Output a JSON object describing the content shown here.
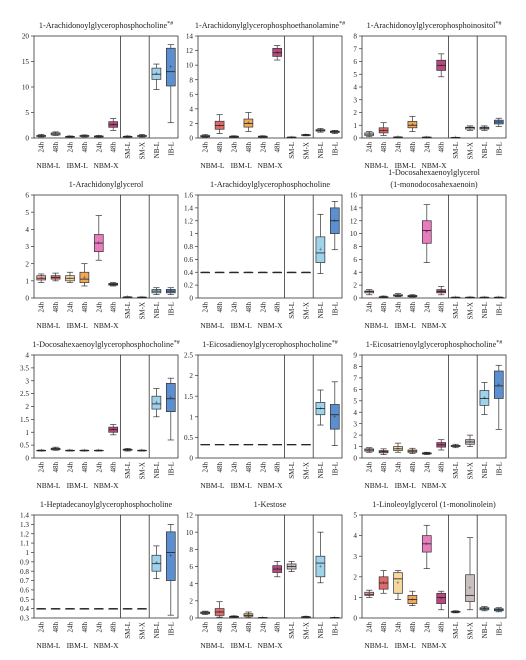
{
  "figure": {
    "x_labels": [
      "24h",
      "48h",
      "24h",
      "48h",
      "24h",
      "48h",
      "SM-L",
      "SM-X",
      "NB-L",
      "IB-L"
    ],
    "group_labels": [
      "NBM-L",
      "IBM-L",
      "NBM-X"
    ],
    "box_colors": [
      "#f4f4f4",
      "#f4f4f4",
      "#f4f4f4",
      "#f4f4f4",
      "#f4f4f4",
      "#f4f4f4",
      "#f4f4f4",
      "#f4f4f4",
      "#9fd3ec",
      "#5b8fcf"
    ],
    "color_sets": {
      "c1": [
        "#f4f4f4",
        "#f4f4f4",
        "#f4f4f4",
        "#f4f4f4",
        "#f4f4f4",
        "#b9487f",
        "#f4f4f4",
        "#f4f4f4",
        "#9fd3ec",
        "#5b8fcf"
      ],
      "c2": [
        "#f4f4f4",
        "#e06a6a",
        "#f4f4f4",
        "#f0a95a",
        "#f4f4f4",
        "#b9487f",
        "#f4f4f4",
        "#f4f4f4",
        "#9fd3ec",
        "#5b8fcf"
      ],
      "c3": [
        "#f4a6a6",
        "#e06a6a",
        "#f6d7a0",
        "#f0a95a",
        "#e97bbf",
        "#9c3c7a",
        "#f4f4f4",
        "#f4f4f4",
        "#9fd3ec",
        "#5b8fcf"
      ],
      "c4": [
        "#f4f4f4",
        "#f4f4f4",
        "#f4f4f4",
        "#f4f4f4",
        "#f4f4f4",
        "#f4f4f4",
        "#f4f4f4",
        "#f4f4f4",
        "#9fd3ec",
        "#5b8fcf"
      ],
      "c5": [
        "#f4a6a6",
        "#e06a6a",
        "#f6d7a0",
        "#f0a95a",
        "#e97bbf",
        "#b9487f",
        "#c9bfbf",
        "#c9bfbf",
        "#9fd3ec",
        "#5b8fcf"
      ]
    }
  },
  "chart_data": [
    {
      "type": "box",
      "title": "1-Arachidonoylglycerophosphocholine",
      "title_sup": "*#",
      "ylim": [
        0,
        20
      ],
      "yticks": [
        0,
        5,
        10,
        15,
        20
      ],
      "colors": "c1",
      "boxes": [
        [
          0.2,
          0.3,
          0.4,
          0.5,
          0.7
        ],
        [
          0.5,
          0.6,
          0.8,
          1.0,
          1.2
        ],
        [
          0.1,
          0.2,
          0.3,
          0.3,
          0.4
        ],
        [
          0.2,
          0.3,
          0.4,
          0.5,
          0.6
        ],
        [
          0.1,
          0.2,
          0.3,
          0.4,
          0.5
        ],
        [
          1.5,
          2.1,
          2.6,
          3.2,
          3.8
        ],
        [
          0.1,
          0.2,
          0.3,
          0.3,
          0.4
        ],
        [
          0.2,
          0.3,
          0.4,
          0.5,
          0.7
        ],
        [
          9.5,
          11.5,
          12.5,
          13.7,
          14.5
        ],
        [
          3.0,
          10.2,
          13.0,
          17.6,
          18.3
        ]
      ]
    },
    {
      "type": "box",
      "title": "1-Arachidonylglycerophosphoethanolamine",
      "title_sup": "*#",
      "ylim": [
        0,
        14
      ],
      "yticks": [
        0,
        2,
        4,
        6,
        8,
        10,
        12,
        14
      ],
      "colors": "c2",
      "boxes": [
        [
          0.1,
          0.15,
          0.25,
          0.35,
          0.45
        ],
        [
          0.6,
          1.2,
          1.7,
          2.3,
          3.2
        ],
        [
          0.05,
          0.1,
          0.2,
          0.25,
          0.3
        ],
        [
          0.9,
          1.5,
          2.0,
          2.6,
          3.5
        ],
        [
          0.05,
          0.1,
          0.2,
          0.25,
          0.3
        ],
        [
          10.7,
          11.2,
          11.7,
          12.3,
          12.7
        ],
        [
          0.05,
          0.08,
          0.1,
          0.12,
          0.15
        ],
        [
          0.3,
          0.35,
          0.4,
          0.45,
          0.5
        ],
        [
          0.8,
          0.95,
          1.05,
          1.15,
          1.3
        ],
        [
          0.6,
          0.75,
          0.85,
          0.95,
          1.05
        ]
      ]
    },
    {
      "type": "box",
      "title": "1-Arachidonoylglycerophosphoinositol",
      "title_sup": "*#",
      "ylim": [
        0,
        8
      ],
      "yticks": [
        0,
        1,
        2,
        3,
        4,
        5,
        6,
        7,
        8
      ],
      "colors": "c2",
      "boxes": [
        [
          0.1,
          0.2,
          0.3,
          0.4,
          0.5
        ],
        [
          0.2,
          0.4,
          0.6,
          0.8,
          1.2
        ],
        [
          0.02,
          0.04,
          0.06,
          0.08,
          0.1
        ],
        [
          0.5,
          0.8,
          1.0,
          1.3,
          1.7
        ],
        [
          0.02,
          0.03,
          0.05,
          0.07,
          0.09
        ],
        [
          4.8,
          5.3,
          5.7,
          6.1,
          6.6
        ],
        [
          0.02,
          0.03,
          0.04,
          0.05,
          0.06
        ],
        [
          0.6,
          0.7,
          0.8,
          0.85,
          0.95
        ],
        [
          0.6,
          0.7,
          0.78,
          0.85,
          0.95
        ],
        [
          0.9,
          1.1,
          1.25,
          1.4,
          1.55
        ]
      ]
    },
    {
      "type": "box",
      "title": "1-Arachidonylglycerol",
      "title_sup": "",
      "ylim": [
        0,
        6
      ],
      "yticks": [
        0,
        1,
        2,
        3,
        4,
        5,
        6
      ],
      "colors": "c3",
      "boxes": [
        [
          0.9,
          1.05,
          1.15,
          1.3,
          1.4
        ],
        [
          1.0,
          1.1,
          1.2,
          1.3,
          1.45
        ],
        [
          0.9,
          1.0,
          1.15,
          1.3,
          1.5
        ],
        [
          0.7,
          0.9,
          1.1,
          1.5,
          2.0
        ],
        [
          2.2,
          2.7,
          3.2,
          3.7,
          4.8
        ],
        [
          0.7,
          0.75,
          0.8,
          0.85,
          0.9
        ],
        [
          0.02,
          0.04,
          0.05,
          0.06,
          0.08
        ],
        [
          0.02,
          0.03,
          0.04,
          0.05,
          0.06
        ],
        [
          0.2,
          0.3,
          0.4,
          0.5,
          0.6
        ],
        [
          0.2,
          0.3,
          0.4,
          0.5,
          0.6
        ]
      ]
    },
    {
      "type": "box",
      "title": "1-Arachidoylglycerophosphocholine",
      "title_sup": "",
      "ylim": [
        0,
        1.6
      ],
      "yticks": [
        0,
        0.2,
        0.4,
        0.6,
        0.8,
        1.0,
        1.2,
        1.4,
        1.6
      ],
      "colors": "c4",
      "boxes": [
        [
          0.4,
          0.4,
          0.4,
          0.4,
          0.4
        ],
        [
          0.4,
          0.4,
          0.4,
          0.4,
          0.4
        ],
        [
          0.4,
          0.4,
          0.4,
          0.4,
          0.4
        ],
        [
          0.4,
          0.4,
          0.4,
          0.4,
          0.4
        ],
        [
          0.4,
          0.4,
          0.4,
          0.4,
          0.4
        ],
        [
          0.4,
          0.4,
          0.4,
          0.4,
          0.4
        ],
        [
          0.4,
          0.4,
          0.4,
          0.4,
          0.4
        ],
        [
          0.4,
          0.4,
          0.4,
          0.4,
          0.4
        ],
        [
          0.38,
          0.55,
          0.7,
          0.95,
          1.3
        ],
        [
          0.75,
          1.0,
          1.2,
          1.4,
          1.5
        ]
      ]
    },
    {
      "type": "box",
      "title": "1-Docosahexaenoylglycerol",
      "title_line2": "(1-monodocosahexaenoin)",
      "title_sup": "",
      "ylim": [
        0,
        16
      ],
      "yticks": [
        0,
        2,
        4,
        6,
        8,
        10,
        12,
        14,
        16
      ],
      "colors": "c5",
      "boxes": [
        [
          0.5,
          0.8,
          1.0,
          1.1,
          1.3
        ],
        [
          0.05,
          0.1,
          0.15,
          0.2,
          0.3
        ],
        [
          0.2,
          0.3,
          0.4,
          0.5,
          0.7
        ],
        [
          0.15,
          0.2,
          0.3,
          0.4,
          0.5
        ],
        [
          5.5,
          8.5,
          10.5,
          12.0,
          14.5
        ],
        [
          0.5,
          0.8,
          1.0,
          1.3,
          1.8
        ],
        [
          0.05,
          0.08,
          0.1,
          0.12,
          0.15
        ],
        [
          0.05,
          0.08,
          0.1,
          0.12,
          0.15
        ],
        [
          0.05,
          0.08,
          0.1,
          0.12,
          0.15
        ],
        [
          0.05,
          0.08,
          0.1,
          0.12,
          0.15
        ]
      ]
    },
    {
      "type": "box",
      "title": "1-Docosahexaenoylglycerophosphocholine",
      "title_sup": "*#",
      "ylim": [
        0,
        4
      ],
      "yticks": [
        0,
        0.5,
        1.0,
        1.5,
        2.0,
        2.5,
        3.0,
        3.5,
        4.0
      ],
      "colors": "c1",
      "boxes": [
        [
          0.27,
          0.28,
          0.29,
          0.3,
          0.31
        ],
        [
          0.3,
          0.32,
          0.35,
          0.38,
          0.42
        ],
        [
          0.27,
          0.28,
          0.29,
          0.3,
          0.31
        ],
        [
          0.27,
          0.28,
          0.29,
          0.3,
          0.31
        ],
        [
          0.27,
          0.28,
          0.29,
          0.3,
          0.31
        ],
        [
          0.9,
          1.0,
          1.1,
          1.2,
          1.3
        ],
        [
          0.27,
          0.3,
          0.32,
          0.34,
          0.37
        ],
        [
          0.27,
          0.28,
          0.29,
          0.3,
          0.31
        ],
        [
          1.6,
          1.9,
          2.1,
          2.4,
          2.7
        ],
        [
          0.7,
          1.8,
          2.3,
          2.9,
          3.1
        ]
      ]
    },
    {
      "type": "box",
      "title": "1-Eicosadienoylglycerophosphocholine",
      "title_sup": "*#",
      "ylim": [
        0,
        2.5
      ],
      "yticks": [
        0,
        0.5,
        1.0,
        1.5,
        2.0,
        2.5
      ],
      "colors": "c4",
      "boxes": [
        [
          0.33,
          0.33,
          0.33,
          0.33,
          0.33
        ],
        [
          0.33,
          0.33,
          0.33,
          0.33,
          0.33
        ],
        [
          0.33,
          0.33,
          0.33,
          0.33,
          0.33
        ],
        [
          0.33,
          0.33,
          0.33,
          0.33,
          0.33
        ],
        [
          0.33,
          0.33,
          0.33,
          0.33,
          0.33
        ],
        [
          0.33,
          0.33,
          0.33,
          0.33,
          0.33
        ],
        [
          0.33,
          0.33,
          0.33,
          0.33,
          0.33
        ],
        [
          0.33,
          0.33,
          0.33,
          0.33,
          0.33
        ],
        [
          0.8,
          1.05,
          1.2,
          1.35,
          1.65
        ],
        [
          0.3,
          0.7,
          1.05,
          1.3,
          1.85
        ]
      ]
    },
    {
      "type": "box",
      "title": "1-Eicosatrienoylglycerophosphocholine",
      "title_sup": "*#",
      "ylim": [
        0,
        9
      ],
      "yticks": [
        0,
        1,
        2,
        3,
        4,
        5,
        6,
        7,
        8,
        9
      ],
      "colors": "c5",
      "boxes": [
        [
          0.5,
          0.6,
          0.7,
          0.8,
          0.9
        ],
        [
          0.3,
          0.45,
          0.55,
          0.65,
          0.8
        ],
        [
          0.5,
          0.65,
          0.8,
          1.0,
          1.3
        ],
        [
          0.4,
          0.5,
          0.6,
          0.7,
          0.85
        ],
        [
          0.3,
          0.35,
          0.4,
          0.45,
          0.5
        ],
        [
          0.7,
          0.95,
          1.15,
          1.35,
          1.6
        ],
        [
          0.9,
          1.0,
          1.05,
          1.1,
          1.2
        ],
        [
          1.0,
          1.2,
          1.4,
          1.6,
          2.0
        ],
        [
          3.8,
          4.6,
          5.2,
          5.9,
          6.6
        ],
        [
          2.5,
          5.2,
          6.3,
          7.6,
          8.1
        ]
      ]
    },
    {
      "type": "box",
      "title": "1-Heptadecanoylglycerophosphocholine",
      "title_sup": "",
      "ylim": [
        0.3,
        1.4
      ],
      "yticks": [
        0.3,
        0.4,
        0.5,
        0.6,
        0.7,
        0.8,
        0.9,
        1.0,
        1.1,
        1.2,
        1.3,
        1.4
      ],
      "colors": "c4",
      "boxes": [
        [
          0.4,
          0.4,
          0.4,
          0.4,
          0.4
        ],
        [
          0.4,
          0.4,
          0.4,
          0.4,
          0.4
        ],
        [
          0.4,
          0.4,
          0.4,
          0.4,
          0.4
        ],
        [
          0.4,
          0.4,
          0.4,
          0.4,
          0.4
        ],
        [
          0.4,
          0.4,
          0.4,
          0.4,
          0.4
        ],
        [
          0.4,
          0.4,
          0.4,
          0.4,
          0.4
        ],
        [
          0.4,
          0.4,
          0.4,
          0.4,
          0.4
        ],
        [
          0.4,
          0.4,
          0.4,
          0.4,
          0.4
        ],
        [
          0.72,
          0.8,
          0.88,
          0.97,
          1.07
        ],
        [
          0.33,
          0.7,
          1.0,
          1.22,
          1.3
        ]
      ]
    },
    {
      "type": "box",
      "title": "1-Kestose",
      "title_sup": "",
      "ylim": [
        0,
        12
      ],
      "yticks": [
        0,
        2,
        4,
        6,
        8,
        10,
        12
      ],
      "colors": "c5",
      "boxes": [
        [
          0.4,
          0.5,
          0.6,
          0.7,
          0.8
        ],
        [
          0.1,
          0.3,
          0.7,
          1.1,
          1.9
        ],
        [
          0.05,
          0.1,
          0.15,
          0.2,
          0.25
        ],
        [
          0.05,
          0.2,
          0.3,
          0.5,
          0.7
        ],
        [
          0.02,
          0.03,
          0.04,
          0.05,
          0.06
        ],
        [
          4.8,
          5.3,
          5.7,
          6.1,
          6.6
        ],
        [
          5.4,
          5.7,
          6.0,
          6.3,
          6.6
        ],
        [
          0.02,
          0.05,
          0.1,
          0.15,
          0.2
        ],
        [
          4.1,
          4.8,
          6.4,
          7.2,
          10.0
        ],
        [
          0.02,
          0.03,
          0.04,
          0.05,
          0.06
        ]
      ]
    },
    {
      "type": "box",
      "title": "1-Linoleoylglycerol (1-monolinolein)",
      "title_sup": "",
      "ylim": [
        0,
        5
      ],
      "yticks": [
        0,
        1,
        2,
        3,
        4,
        5
      ],
      "colors": "c5",
      "boxes": [
        [
          1.0,
          1.1,
          1.15,
          1.25,
          1.35
        ],
        [
          1.2,
          1.4,
          1.7,
          2.0,
          2.3
        ],
        [
          0.9,
          1.2,
          1.9,
          2.2,
          2.3
        ],
        [
          0.6,
          0.7,
          0.9,
          1.1,
          1.3
        ],
        [
          2.4,
          3.2,
          3.6,
          4.0,
          4.5
        ],
        [
          0.4,
          0.7,
          1.0,
          1.2,
          1.3
        ],
        [
          0.25,
          0.28,
          0.3,
          0.32,
          0.35
        ],
        [
          0.4,
          0.8,
          1.1,
          2.1,
          3.9
        ],
        [
          0.35,
          0.4,
          0.45,
          0.5,
          0.55
        ],
        [
          0.3,
          0.35,
          0.4,
          0.45,
          0.5
        ]
      ]
    }
  ]
}
